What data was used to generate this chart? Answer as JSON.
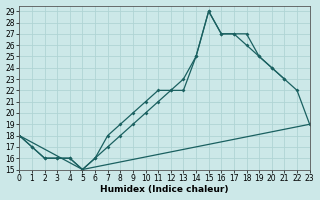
{
  "xlabel": "Humidex (Indice chaleur)",
  "bg_color": "#cce8e8",
  "line_color": "#1a6060",
  "grid_color": "#b0d4d4",
  "series1_x": [
    0,
    1,
    2,
    3,
    4,
    5,
    6,
    7,
    8,
    9,
    10,
    11,
    12,
    13,
    14,
    15,
    16,
    17,
    18,
    19,
    20,
    21
  ],
  "series1_y": [
    18,
    17,
    16,
    16,
    16,
    15,
    16,
    18,
    19,
    20,
    21,
    22,
    22,
    23,
    25,
    29,
    27,
    27,
    26,
    25,
    24,
    23
  ],
  "series2_x": [
    0,
    1,
    2,
    3,
    4,
    5,
    6,
    7,
    8,
    9,
    10,
    11,
    12,
    13,
    14,
    15,
    16,
    17,
    18,
    19,
    20,
    21,
    22,
    23
  ],
  "series2_y": [
    18,
    17,
    16,
    16,
    16,
    15,
    16,
    17,
    18,
    19,
    20,
    21,
    22,
    22,
    25,
    29,
    27,
    27,
    27,
    25,
    24,
    23,
    22,
    19
  ],
  "series3_x": [
    0,
    5,
    23
  ],
  "series3_y": [
    18,
    15,
    19
  ],
  "xlim": [
    0,
    23
  ],
  "ylim": [
    15,
    29.5
  ],
  "yticks": [
    15,
    16,
    17,
    18,
    19,
    20,
    21,
    22,
    23,
    24,
    25,
    26,
    27,
    28,
    29
  ],
  "xticks": [
    0,
    1,
    2,
    3,
    4,
    5,
    6,
    7,
    8,
    9,
    10,
    11,
    12,
    13,
    14,
    15,
    16,
    17,
    18,
    19,
    20,
    21,
    22,
    23
  ],
  "tick_fontsize": 5.5,
  "xlabel_fontsize": 6.5
}
